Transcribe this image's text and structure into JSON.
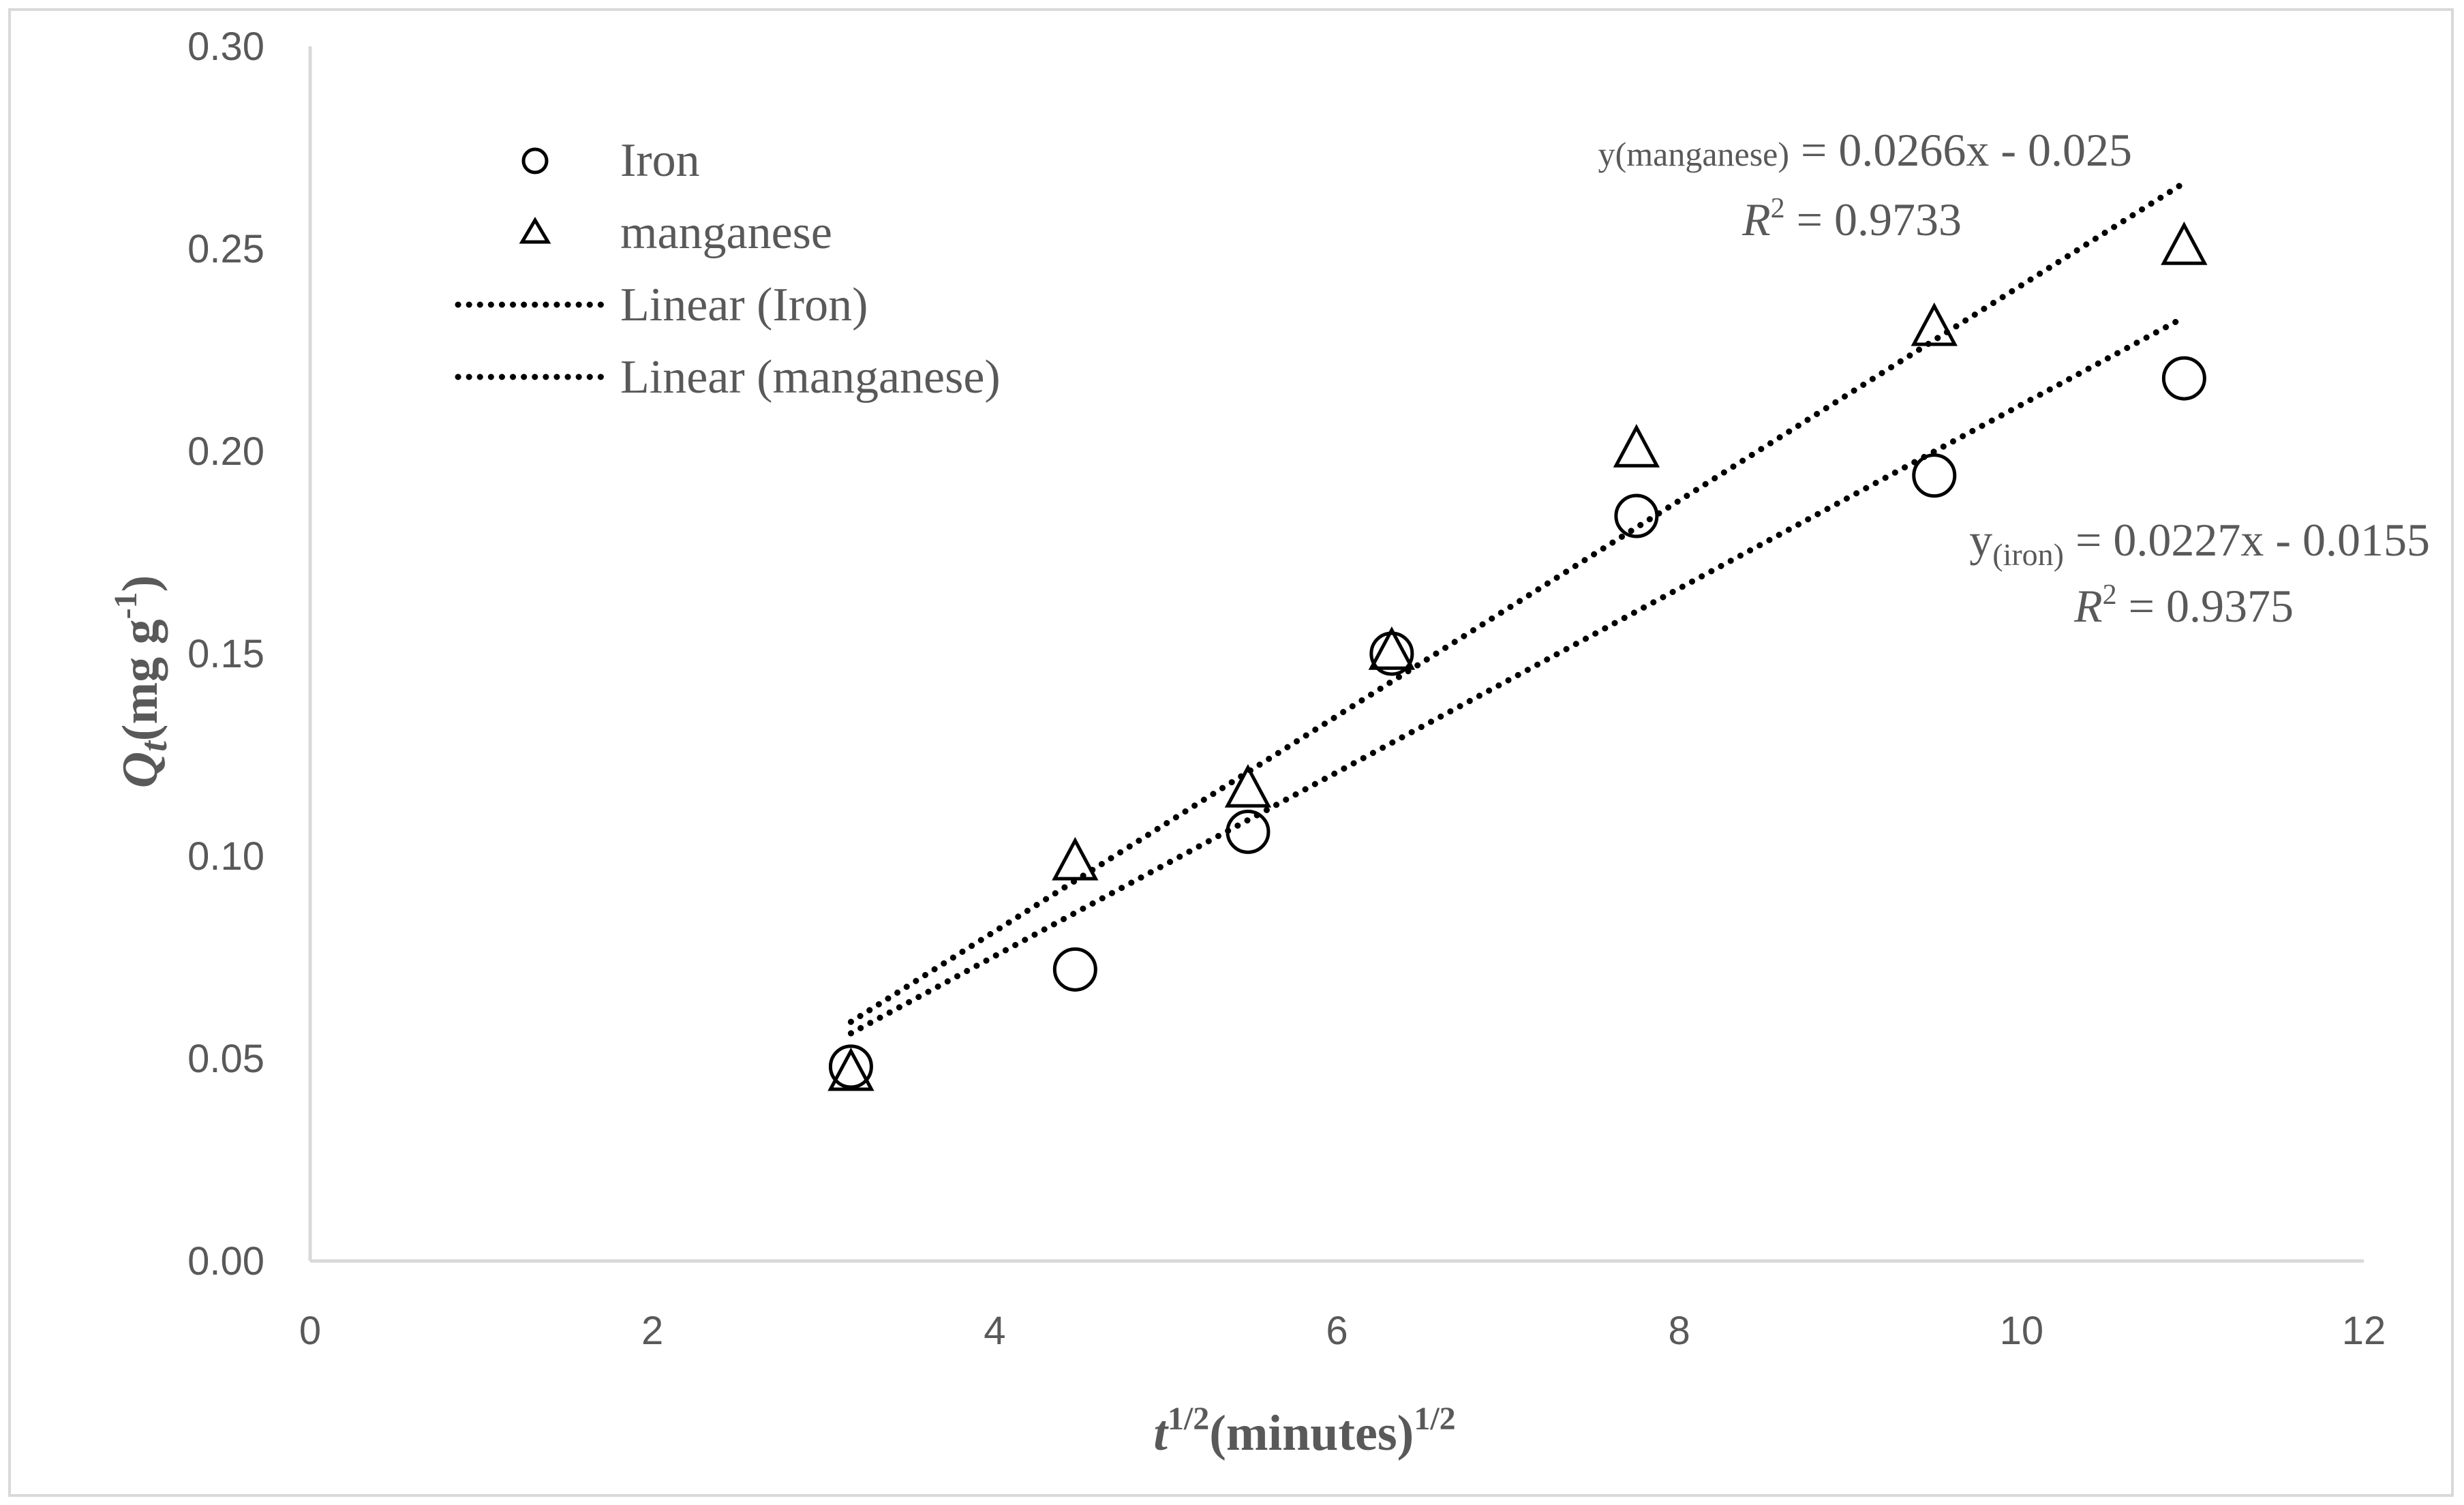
{
  "chart_data": {
    "type": "scatter",
    "xlabel": {
      "main": "t",
      "main_sup": "1/2",
      "unit": "(minutes)",
      "unit_sup": "1/2"
    },
    "ylabel": {
      "main": "Q",
      "main_sub": "t",
      "unit": "(mg g",
      "unit_sup": "-1",
      "close": ")"
    },
    "xlim": [
      0,
      12
    ],
    "ylim": [
      0,
      0.3
    ],
    "x_ticks": [
      "0",
      "2",
      "4",
      "6",
      "8",
      "10",
      "12"
    ],
    "y_ticks": [
      "0.00",
      "0.05",
      "0.10",
      "0.15",
      "0.20",
      "0.25",
      "0.30"
    ],
    "grid": false,
    "legend_position": "top-left",
    "legend": [
      {
        "label": "Iron",
        "marker": "circle"
      },
      {
        "label": "manganese",
        "marker": "triangle"
      },
      {
        "label": "Linear (Iron)",
        "marker": "dotted-line"
      },
      {
        "label": "Linear (manganese)",
        "marker": "dotted-line"
      }
    ],
    "series": [
      {
        "name": "Iron",
        "marker": "circle",
        "x": [
          3.16,
          4.47,
          5.48,
          6.32,
          7.75,
          9.49,
          10.95
        ],
        "y": [
          0.048,
          0.072,
          0.106,
          0.15,
          0.184,
          0.194,
          0.218
        ]
      },
      {
        "name": "manganese",
        "marker": "triangle",
        "x": [
          3.16,
          4.47,
          5.48,
          6.32,
          7.75,
          9.49,
          10.95
        ],
        "y": [
          0.046,
          0.098,
          0.116,
          0.15,
          0.2,
          0.23,
          0.25
        ]
      }
    ],
    "trendlines": [
      {
        "name": "Linear (Iron)",
        "slope": 0.0227,
        "intercept": -0.0155,
        "x_range": [
          3.16,
          10.95
        ]
      },
      {
        "name": "Linear (manganese)",
        "slope": 0.0266,
        "intercept": -0.025,
        "x_range": [
          3.16,
          10.95
        ]
      }
    ],
    "annotations": {
      "manganese_eq": {
        "y": "y",
        "sub": "(manganese)",
        "rest": " = 0.0266x - 0.025"
      },
      "manganese_r2": {
        "r": "R",
        "sup": "2",
        "rest": " = 0.9733"
      },
      "iron_eq": {
        "y": "y",
        "sub": "(iron)",
        "rest": " = 0.0227x - 0.0155"
      },
      "iron_r2": {
        "r": "R",
        "sup": "2",
        "rest": " = 0.9375"
      }
    },
    "colors": {
      "axis": "#d9d9d9",
      "text": "#595959",
      "marker": "#000000"
    }
  }
}
